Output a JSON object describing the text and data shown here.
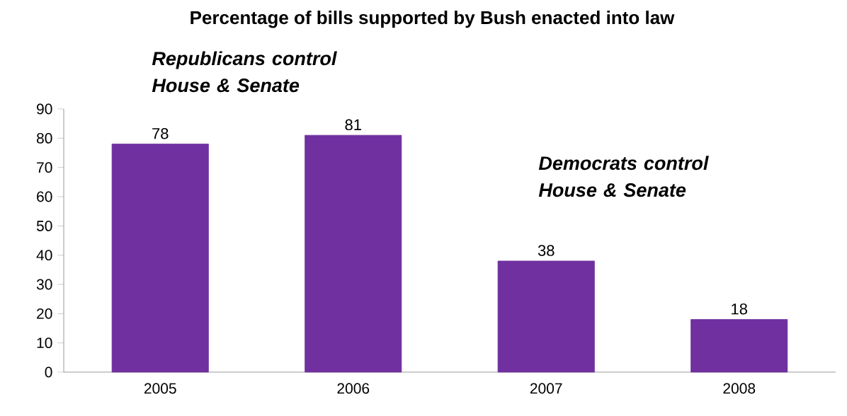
{
  "chart_data": {
    "type": "bar",
    "title": "Percentage of bills supported by Bush enacted into law",
    "categories": [
      "2005",
      "2006",
      "2007",
      "2008"
    ],
    "values": [
      78,
      81,
      38,
      18
    ],
    "color": "#7030a0",
    "ylim": [
      0,
      90
    ],
    "yticks": [
      0,
      10,
      20,
      30,
      40,
      50,
      60,
      70,
      80,
      90
    ],
    "data_labels": true,
    "grid": false,
    "annotations": [
      "Republicans control House & Senate",
      "Democrats control House & Senate"
    ]
  }
}
